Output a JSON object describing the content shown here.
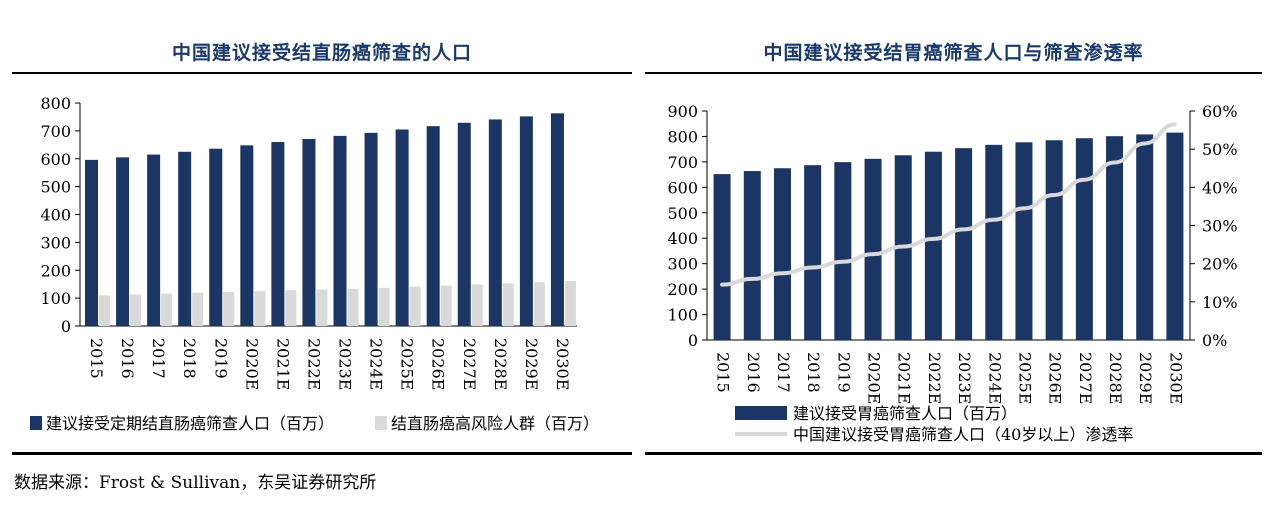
{
  "source": "数据来源：Frost & Sullivan，东吴证券研究所",
  "colors": {
    "navy": "#1b3564",
    "lightgray": "#d9d9d9",
    "title": "#1a3a6e",
    "line": "#d9d9d9"
  },
  "chart_data": [
    {
      "type": "bar",
      "title": "中国建议接受结直肠癌筛查的人口",
      "categories": [
        "2015",
        "2016",
        "2017",
        "2018",
        "2019",
        "2020E",
        "2021E",
        "2022E",
        "2023E",
        "2024E",
        "2025E",
        "2026E",
        "2027E",
        "2028E",
        "2029E",
        "2030E"
      ],
      "series": [
        {
          "name": "建议接受定期结直肠癌筛查人口（百万）",
          "color": "#1b3564",
          "values": [
            596,
            605,
            615,
            625,
            636,
            648,
            660,
            671,
            682,
            693,
            705,
            717,
            729,
            741,
            752,
            763
          ]
        },
        {
          "name": "结直肠癌高风险人群（百万）",
          "color": "#d9d9d9",
          "values": [
            110,
            113,
            116,
            119,
            122,
            125,
            128,
            131,
            134,
            137,
            141,
            145,
            149,
            153,
            157,
            161
          ]
        }
      ],
      "ylim": [
        0,
        800
      ],
      "yticks": [
        "0",
        "100",
        "200",
        "300",
        "400",
        "500",
        "600",
        "700",
        "800"
      ],
      "legend": "bottom"
    },
    {
      "type": "bar",
      "title": "中国建议接受结胃癌筛查人口与筛查渗透率",
      "categories": [
        "2015",
        "2016",
        "2017",
        "2018",
        "2019",
        "2020E",
        "2021E",
        "2022E",
        "2023E",
        "2024E",
        "2025E",
        "2026E",
        "2027E",
        "2028E",
        "2029E",
        "2030E"
      ],
      "series": [
        {
          "name": "建议接受胃癌筛查人口（百万）",
          "type": "bar",
          "axis": "left",
          "color": "#1b3564",
          "values": [
            652,
            664,
            675,
            687,
            699,
            712,
            726,
            740,
            754,
            767,
            777,
            785,
            793,
            801,
            808,
            815
          ]
        },
        {
          "name": "中国建议接受胃癌筛查人口（40岁以上）渗透率",
          "type": "line",
          "axis": "right",
          "color": "#d9d9d9",
          "values": [
            14.5,
            16.0,
            17.5,
            19.0,
            20.5,
            22.5,
            24.5,
            26.5,
            29.0,
            31.5,
            34.5,
            38.0,
            42.0,
            46.5,
            51.5,
            56.5
          ]
        }
      ],
      "ylim": [
        0,
        900
      ],
      "yticks": [
        "0",
        "100",
        "200",
        "300",
        "400",
        "500",
        "600",
        "700",
        "800",
        "900"
      ],
      "y2lim": [
        0,
        60
      ],
      "y2ticks": [
        "0%",
        "10%",
        "20%",
        "30%",
        "40%",
        "50%",
        "60%"
      ],
      "legend": "bottom"
    }
  ]
}
